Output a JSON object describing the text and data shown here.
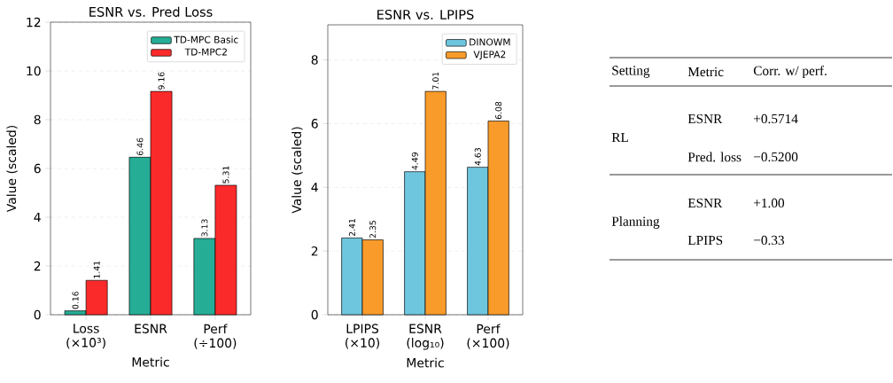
{
  "chart_data": [
    {
      "type": "bar",
      "title": "ESNR vs. Pred Loss",
      "xlabel": "Metric",
      "ylabel": "Value (scaled)",
      "categories": [
        "Loss (×10³)",
        "ESNR",
        "Perf (÷100)"
      ],
      "series": [
        {
          "name": "TD-MPC Basic",
          "color": "#26ad96",
          "values": [
            0.16,
            6.46,
            3.13
          ]
        },
        {
          "name": "TD-MPC2",
          "color": "#fb2a2a",
          "values": [
            1.41,
            9.16,
            5.31
          ]
        }
      ],
      "ylim": [
        0,
        12
      ],
      "yticks": [
        0,
        2,
        4,
        6,
        8,
        10,
        12
      ],
      "grid": "y",
      "legend": "top right",
      "data_labels": true
    },
    {
      "type": "bar",
      "title": "ESNR vs. LPIPS",
      "xlabel": "Metric",
      "ylabel": "Value (scaled)",
      "categories": [
        "LPIPS (×10)",
        "ESNR (log₁₀)",
        "Perf (×100)"
      ],
      "series": [
        {
          "name": "DINOWM",
          "color": "#6ec6de",
          "values": [
            2.41,
            4.49,
            4.63
          ]
        },
        {
          "name": "VJEPA2",
          "color": "#f99b2b",
          "values": [
            2.35,
            7.01,
            6.08
          ]
        }
      ],
      "ylim": [
        0,
        9.1
      ],
      "yticks": [
        0,
        2,
        4,
        6,
        8
      ],
      "grid": "y",
      "legend": "top right",
      "data_labels": true
    },
    {
      "type": "other",
      "annotations": [
        "Setting",
        "Metric",
        "Corr. w/ perf.",
        "RL",
        "ESNR",
        "+0.5714",
        "Pred. loss",
        "−0.5200",
        "Planning",
        "ESNR",
        "+1.00",
        "LPIPS",
        "−0.33"
      ]
    }
  ]
}
